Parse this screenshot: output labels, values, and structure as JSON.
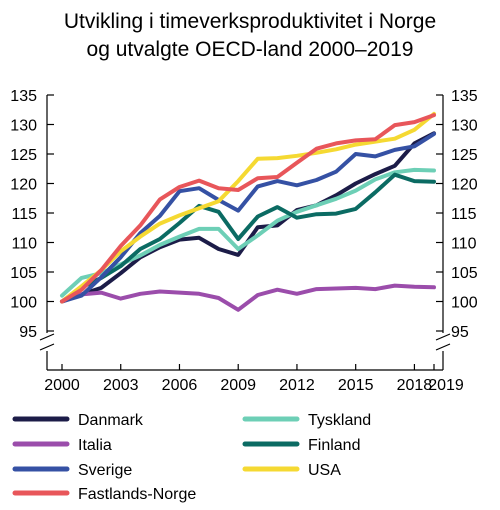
{
  "chart_data": {
    "type": "line",
    "title": "Utvikling i timeverksproduktivitet i Norge og utvalgte OECD-land 2000–2019",
    "title_lines": [
      "Utvikling i timeverksproduktivitet i Norge",
      "og utvalgte OECD-land 2000–2019"
    ],
    "xlabel": "",
    "ylabel": "",
    "x": [
      2000,
      2001,
      2002,
      2003,
      2004,
      2005,
      2006,
      2007,
      2008,
      2009,
      2010,
      2011,
      2012,
      2013,
      2014,
      2015,
      2016,
      2017,
      2018,
      2019
    ],
    "x_ticks": [
      "2000",
      "2003",
      "2006",
      "2009",
      "2012",
      "2015",
      "2018",
      "2019"
    ],
    "y_ticks": [
      "95",
      "100",
      "105",
      "110",
      "115",
      "120",
      "125",
      "130",
      "135"
    ],
    "ylim": [
      95,
      135
    ],
    "axis_break": true,
    "grid": false,
    "legend_position": "bottom",
    "series": [
      {
        "name": "Danmark",
        "color": "#1c1c48",
        "values": [
          100,
          101.2,
          102.3,
          104.8,
          107.5,
          109.2,
          110.5,
          110.8,
          108.9,
          107.9,
          112.6,
          112.9,
          115.5,
          116.3,
          118,
          120,
          121.6,
          123,
          126.8,
          128.5
        ]
      },
      {
        "name": "Tyskland",
        "color": "#6dcfb6",
        "values": [
          101,
          104,
          104.8,
          106.3,
          107.8,
          109.6,
          111,
          112.3,
          112.3,
          108.9,
          111.2,
          113.7,
          115.2,
          116.3,
          117.4,
          118.8,
          120.7,
          121.9,
          122.3,
          122.2
        ]
      },
      {
        "name": "Italia",
        "color": "#9b4dab",
        "values": [
          100,
          101.2,
          101.5,
          100.5,
          101.3,
          101.7,
          101.5,
          101.3,
          100.6,
          98.6,
          101.1,
          102,
          101.3,
          102.1,
          102.2,
          102.3,
          102.1,
          102.7,
          102.5,
          102.4
        ]
      },
      {
        "name": "Finland",
        "color": "#0b6b63",
        "values": [
          100,
          102.4,
          104,
          106,
          108.9,
          110.6,
          113.3,
          116.2,
          115.2,
          110.6,
          114.4,
          116,
          114.2,
          114.8,
          114.9,
          115.7,
          118.5,
          121.5,
          120.4,
          120.3
        ]
      },
      {
        "name": "Sverige",
        "color": "#3551a4",
        "values": [
          100,
          101,
          104.1,
          107.5,
          111.6,
          114.5,
          118.7,
          119.2,
          117.2,
          115.4,
          119.5,
          120.4,
          119.7,
          120.6,
          122,
          125,
          124.6,
          125.7,
          126.3,
          128.4
        ]
      },
      {
        "name": "USA",
        "color": "#f5d932",
        "values": [
          100,
          102.6,
          105.3,
          108.5,
          111,
          113.2,
          114.6,
          115.8,
          117,
          120.4,
          124.2,
          124.3,
          124.7,
          125.2,
          125.8,
          126.6,
          127.1,
          127.6,
          129.1,
          131.8
        ]
      },
      {
        "name": "Fastlands-Norge",
        "color": "#e8565a",
        "values": [
          100,
          102,
          105.3,
          109.4,
          112.9,
          117.3,
          119.4,
          120.5,
          119.2,
          118.9,
          120.9,
          121.1,
          123.5,
          125.9,
          126.8,
          127.3,
          127.5,
          129.9,
          130.4,
          131.6
        ]
      }
    ]
  }
}
